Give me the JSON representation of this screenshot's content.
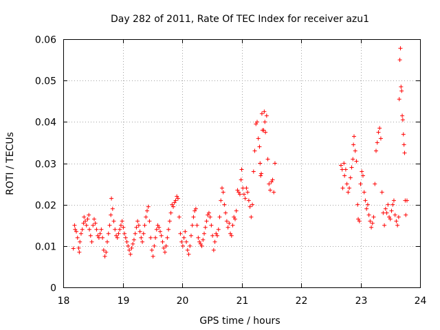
{
  "chart_data": {
    "type": "scatter",
    "title": "Day 282 of 2011, Rate Of TEC Index for receiver azu1",
    "xlabel": "GPS time / hours",
    "ylabel": "ROTI / TECUs",
    "xlim": [
      18,
      24
    ],
    "ylim": [
      0,
      0.06
    ],
    "xticks": [
      18,
      19,
      20,
      21,
      22,
      23,
      24
    ],
    "xtick_labels": [
      "18",
      "19",
      "20",
      "21",
      "22",
      "23",
      "24"
    ],
    "yticks": [
      0,
      0.01,
      0.02,
      0.03,
      0.04,
      0.05,
      0.06
    ],
    "ytick_labels": [
      "0",
      "0.01",
      "0.02",
      "0.03",
      "0.04",
      "0.05",
      "0.06"
    ],
    "grid": true,
    "marker": "+",
    "color": "#ff0000",
    "points": [
      [
        18.17,
        0.0094
      ],
      [
        18.19,
        0.015
      ],
      [
        18.2,
        0.014
      ],
      [
        18.22,
        0.0135
      ],
      [
        18.24,
        0.012
      ],
      [
        18.26,
        0.0095
      ],
      [
        18.27,
        0.0085
      ],
      [
        18.28,
        0.011
      ],
      [
        18.3,
        0.013
      ],
      [
        18.32,
        0.014
      ],
      [
        18.34,
        0.0155
      ],
      [
        18.35,
        0.017
      ],
      [
        18.37,
        0.016
      ],
      [
        18.39,
        0.015
      ],
      [
        18.41,
        0.0165
      ],
      [
        18.43,
        0.0175
      ],
      [
        18.44,
        0.014
      ],
      [
        18.46,
        0.0125
      ],
      [
        18.48,
        0.011
      ],
      [
        18.5,
        0.015
      ],
      [
        18.52,
        0.0165
      ],
      [
        18.54,
        0.0155
      ],
      [
        18.56,
        0.014
      ],
      [
        18.58,
        0.0125
      ],
      [
        18.6,
        0.012
      ],
      [
        18.62,
        0.013
      ],
      [
        18.64,
        0.014
      ],
      [
        18.66,
        0.012
      ],
      [
        18.68,
        0.009
      ],
      [
        18.7,
        0.0075
      ],
      [
        18.72,
        0.0085
      ],
      [
        18.74,
        0.011
      ],
      [
        18.76,
        0.013
      ],
      [
        18.78,
        0.015
      ],
      [
        18.8,
        0.0175
      ],
      [
        18.81,
        0.0215
      ],
      [
        18.83,
        0.019
      ],
      [
        18.85,
        0.016
      ],
      [
        18.87,
        0.014
      ],
      [
        18.89,
        0.0125
      ],
      [
        18.91,
        0.012
      ],
      [
        18.93,
        0.013
      ],
      [
        18.95,
        0.014
      ],
      [
        18.97,
        0.015
      ],
      [
        18.99,
        0.016
      ],
      [
        19.01,
        0.0145
      ],
      [
        19.03,
        0.013
      ],
      [
        19.05,
        0.012
      ],
      [
        19.07,
        0.011
      ],
      [
        19.09,
        0.01
      ],
      [
        19.11,
        0.009
      ],
      [
        19.13,
        0.008
      ],
      [
        19.15,
        0.0095
      ],
      [
        19.17,
        0.0105
      ],
      [
        19.19,
        0.0115
      ],
      [
        19.21,
        0.013
      ],
      [
        19.23,
        0.0145
      ],
      [
        19.25,
        0.016
      ],
      [
        19.27,
        0.015
      ],
      [
        19.29,
        0.0135
      ],
      [
        19.31,
        0.012
      ],
      [
        19.33,
        0.011
      ],
      [
        19.35,
        0.013
      ],
      [
        19.37,
        0.015
      ],
      [
        19.39,
        0.017
      ],
      [
        19.41,
        0.0185
      ],
      [
        19.43,
        0.0195
      ],
      [
        19.45,
        0.016
      ],
      [
        19.47,
        0.012
      ],
      [
        19.49,
        0.009
      ],
      [
        19.51,
        0.0075
      ],
      [
        19.53,
        0.01
      ],
      [
        19.55,
        0.012
      ],
      [
        19.57,
        0.014
      ],
      [
        19.59,
        0.015
      ],
      [
        19.61,
        0.0145
      ],
      [
        19.63,
        0.0135
      ],
      [
        19.65,
        0.0125
      ],
      [
        19.67,
        0.011
      ],
      [
        19.69,
        0.0095
      ],
      [
        19.71,
        0.0085
      ],
      [
        19.73,
        0.01
      ],
      [
        19.75,
        0.012
      ],
      [
        19.77,
        0.014
      ],
      [
        19.79,
        0.016
      ],
      [
        19.81,
        0.018
      ],
      [
        19.83,
        0.02
      ],
      [
        19.85,
        0.0195
      ],
      [
        19.87,
        0.0205
      ],
      [
        19.89,
        0.021
      ],
      [
        19.91,
        0.022
      ],
      [
        19.93,
        0.0215
      ],
      [
        19.95,
        0.017
      ],
      [
        19.97,
        0.013
      ],
      [
        19.99,
        0.011
      ],
      [
        20.01,
        0.01
      ],
      [
        20.03,
        0.012
      ],
      [
        20.05,
        0.0135
      ],
      [
        20.07,
        0.011
      ],
      [
        20.09,
        0.009
      ],
      [
        20.11,
        0.008
      ],
      [
        20.13,
        0.01
      ],
      [
        20.15,
        0.0125
      ],
      [
        20.17,
        0.015
      ],
      [
        20.19,
        0.017
      ],
      [
        20.21,
        0.0185
      ],
      [
        20.23,
        0.019
      ],
      [
        20.25,
        0.015
      ],
      [
        20.27,
        0.012
      ],
      [
        20.29,
        0.011
      ],
      [
        20.31,
        0.0105
      ],
      [
        20.33,
        0.01
      ],
      [
        20.35,
        0.0115
      ],
      [
        20.37,
        0.013
      ],
      [
        20.39,
        0.0145
      ],
      [
        20.41,
        0.016
      ],
      [
        20.43,
        0.0175
      ],
      [
        20.45,
        0.018
      ],
      [
        20.47,
        0.017
      ],
      [
        20.49,
        0.015
      ],
      [
        20.51,
        0.0125
      ],
      [
        20.53,
        0.009
      ],
      [
        20.55,
        0.011
      ],
      [
        20.57,
        0.013
      ],
      [
        20.59,
        0.0125
      ],
      [
        20.61,
        0.014
      ],
      [
        20.63,
        0.017
      ],
      [
        20.65,
        0.021
      ],
      [
        20.67,
        0.024
      ],
      [
        20.69,
        0.023
      ],
      [
        20.71,
        0.02
      ],
      [
        20.73,
        0.018
      ],
      [
        20.75,
        0.016
      ],
      [
        20.77,
        0.0145
      ],
      [
        20.79,
        0.0155
      ],
      [
        20.81,
        0.013
      ],
      [
        20.83,
        0.0125
      ],
      [
        20.85,
        0.015
      ],
      [
        20.87,
        0.017
      ],
      [
        20.89,
        0.0165
      ],
      [
        20.91,
        0.0185
      ],
      [
        20.93,
        0.0235
      ],
      [
        20.95,
        0.023
      ],
      [
        20.97,
        0.0225
      ],
      [
        20.99,
        0.026
      ],
      [
        21.0,
        0.0285
      ],
      [
        21.02,
        0.024
      ],
      [
        21.04,
        0.0225
      ],
      [
        21.06,
        0.0215
      ],
      [
        21.08,
        0.024
      ],
      [
        21.1,
        0.023
      ],
      [
        21.12,
        0.021
      ],
      [
        21.14,
        0.0195
      ],
      [
        21.16,
        0.017
      ],
      [
        21.18,
        0.02
      ],
      [
        21.2,
        0.028
      ],
      [
        21.22,
        0.033
      ],
      [
        21.24,
        0.0395
      ],
      [
        21.26,
        0.04
      ],
      [
        21.28,
        0.036
      ],
      [
        21.3,
        0.034
      ],
      [
        21.31,
        0.03
      ],
      [
        21.32,
        0.027
      ],
      [
        21.33,
        0.0275
      ],
      [
        21.34,
        0.042
      ],
      [
        21.35,
        0.038
      ],
      [
        21.37,
        0.038
      ],
      [
        21.38,
        0.0425
      ],
      [
        21.39,
        0.04
      ],
      [
        21.4,
        0.0375
      ],
      [
        21.42,
        0.0415
      ],
      [
        21.44,
        0.031
      ],
      [
        21.46,
        0.025
      ],
      [
        21.48,
        0.0235
      ],
      [
        21.5,
        0.0255
      ],
      [
        21.52,
        0.026
      ],
      [
        21.54,
        0.023
      ],
      [
        21.56,
        0.03
      ],
      [
        22.67,
        0.0295
      ],
      [
        22.69,
        0.0285
      ],
      [
        22.7,
        0.024
      ],
      [
        22.72,
        0.03
      ],
      [
        22.73,
        0.027
      ],
      [
        22.75,
        0.0285
      ],
      [
        22.77,
        0.025
      ],
      [
        22.79,
        0.023
      ],
      [
        22.81,
        0.024
      ],
      [
        22.83,
        0.0265
      ],
      [
        22.85,
        0.029
      ],
      [
        22.87,
        0.031
      ],
      [
        22.88,
        0.0345
      ],
      [
        22.89,
        0.0365
      ],
      [
        22.91,
        0.033
      ],
      [
        22.93,
        0.0305
      ],
      [
        22.95,
        0.02
      ],
      [
        22.96,
        0.0165
      ],
      [
        22.98,
        0.016
      ],
      [
        23.0,
        0.025
      ],
      [
        23.02,
        0.028
      ],
      [
        23.04,
        0.027
      ],
      [
        23.06,
        0.023
      ],
      [
        23.08,
        0.021
      ],
      [
        23.1,
        0.019
      ],
      [
        23.12,
        0.02
      ],
      [
        23.14,
        0.0175
      ],
      [
        23.16,
        0.016
      ],
      [
        23.18,
        0.0145
      ],
      [
        23.2,
        0.0155
      ],
      [
        23.22,
        0.017
      ],
      [
        23.24,
        0.025
      ],
      [
        23.26,
        0.033
      ],
      [
        23.28,
        0.035
      ],
      [
        23.3,
        0.0375
      ],
      [
        23.32,
        0.0385
      ],
      [
        23.34,
        0.036
      ],
      [
        23.36,
        0.023
      ],
      [
        23.38,
        0.018
      ],
      [
        23.4,
        0.015
      ],
      [
        23.42,
        0.019
      ],
      [
        23.44,
        0.018
      ],
      [
        23.46,
        0.02
      ],
      [
        23.48,
        0.017
      ],
      [
        23.5,
        0.0165
      ],
      [
        23.52,
        0.0185
      ],
      [
        23.54,
        0.02
      ],
      [
        23.56,
        0.021
      ],
      [
        23.58,
        0.0175
      ],
      [
        23.6,
        0.016
      ],
      [
        23.62,
        0.015
      ],
      [
        23.64,
        0.017
      ],
      [
        23.65,
        0.0455
      ],
      [
        23.66,
        0.055
      ],
      [
        23.67,
        0.0578
      ],
      [
        23.68,
        0.0485
      ],
      [
        23.69,
        0.0475
      ],
      [
        23.7,
        0.0415
      ],
      [
        23.71,
        0.0405
      ],
      [
        23.72,
        0.037
      ],
      [
        23.73,
        0.0345
      ],
      [
        23.74,
        0.0325
      ],
      [
        23.75,
        0.021
      ],
      [
        23.76,
        0.0175
      ],
      [
        23.78,
        0.021
      ]
    ]
  }
}
